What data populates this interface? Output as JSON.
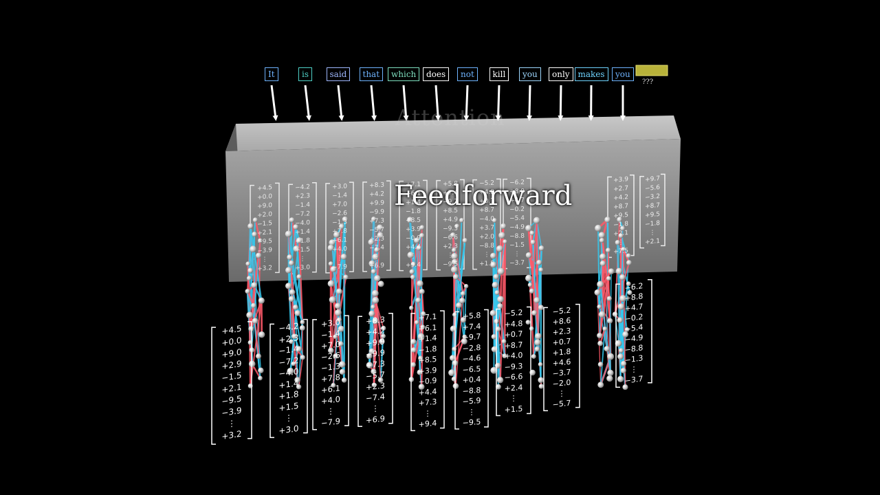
{
  "tokens": [
    {
      "text": "It",
      "color": "#6fb4ff"
    },
    {
      "text": "is",
      "color": "#4fd2c8"
    },
    {
      "text": "said",
      "color": "#9fb8ff"
    },
    {
      "text": "that",
      "color": "#6fb4ff"
    },
    {
      "text": "which",
      "color": "#7fe0c0"
    },
    {
      "text": "does",
      "color": "#ffffff"
    },
    {
      "text": "not",
      "color": "#6fb4ff"
    },
    {
      "text": "kill",
      "color": "#ffffff"
    },
    {
      "text": "you",
      "color": "#9fd8ff"
    },
    {
      "text": "only",
      "color": "#ffffff"
    },
    {
      "text": "makes",
      "color": "#6fd4ff"
    },
    {
      "text": "you",
      "color": "#6fb4ff"
    }
  ],
  "unknown_token": "???",
  "attention_label": "Attention",
  "feedforward_label": "Feedforward",
  "colors": {
    "edge_red": "#ff5a6a",
    "edge_blue": "#35c8ee",
    "neuron": "#d8d8d8",
    "wall": "#8a8a8a",
    "unknown_box": "#b8b23a"
  },
  "input_vectors": [
    [
      "+4.5",
      "+0.0",
      "+9.0",
      "+2.9",
      "−1.5",
      "+2.1",
      "−9.5",
      "−3.9",
      "⋮",
      "+3.2"
    ],
    [
      "−4.2",
      "+2.3",
      "−1.4",
      "−7.2",
      "−4.0",
      "+1.4",
      "+1.8",
      "+1.5",
      "⋮",
      "+3.0"
    ],
    [
      "+3.0",
      "−1.4",
      "+7.0",
      "−2.6",
      "−1.3",
      "+7.8",
      "+6.1",
      "+4.0",
      "⋮",
      "−7.9"
    ],
    [
      "+8.3",
      "+4.2",
      "+9.9",
      "−9.9",
      "+7.3",
      "−5.7",
      "+2.3",
      "−7.4",
      "⋮",
      "+6.9"
    ],
    [
      "+7.1",
      "+6.1",
      "+1.4",
      "−1.8",
      "+8.5",
      "+3.9",
      "−0.9",
      "+4.4",
      "+7.3",
      "⋮",
      "+9.4"
    ],
    [
      "+5.8",
      "+7.4",
      "−9.7",
      "−2.8",
      "−4.6",
      "−6.5",
      "+0.4",
      "−8.8",
      "−5.9",
      "⋮",
      "−9.5"
    ],
    [
      "−5.2",
      "+4.8",
      "+0.7",
      "+8.7",
      "+4.0",
      "−9.3",
      "−6.6",
      "+2.4",
      "⋮",
      "+1.5"
    ],
    [
      "−5.2",
      "+8.6",
      "+2.3",
      "+0.7",
      "+1.8",
      "+4.6",
      "−3.7",
      "−2.0",
      "⋮",
      "−5.7"
    ],
    [
      "−6.2",
      "+8.8",
      "+4.7",
      "−0.2",
      "−5.4",
      "−4.9",
      "−8.8",
      "−1.3",
      "⋮",
      "−3.7"
    ]
  ],
  "output_vectors": [
    [
      "+4.5",
      "+0.0",
      "+9.0",
      "+2.0",
      "−1.5",
      "+2.1",
      "−9.5",
      "−3.9",
      "⋮",
      "+3.2"
    ],
    [
      "−4.2",
      "+2.3",
      "−1.4",
      "−7.2",
      "−4.0",
      "+1.4",
      "+1.8",
      "+1.5",
      "⋮",
      "+3.0"
    ],
    [
      "+3.0",
      "−1.4",
      "+7.0",
      "−2.6",
      "−1.3",
      "+7.8",
      "+6.1",
      "+4.0",
      "⋮",
      "−7.9"
    ],
    [
      "+8.3",
      "+4.2",
      "+9.9",
      "−9.9",
      "+7.3",
      "−5.7",
      "+2.3",
      "−7.4",
      "⋮",
      "+6.9"
    ],
    [
      "+7.1",
      "+6.1",
      "+1.4",
      "−1.8",
      "+8.5",
      "+3.9",
      "−0.9",
      "+4.4",
      "⋮",
      "+9.4"
    ],
    [
      "+5.8",
      "+7.4",
      "−9.7",
      "+8.5",
      "+4.9",
      "−9.3",
      "−6.6",
      "+2.3",
      "⋮",
      "−9.5"
    ],
    [
      "−5.2",
      "+4.8",
      "+0.7",
      "+8.7",
      "−4.0",
      "+3.7",
      "+2.0",
      "−8.8",
      "⋮",
      "+1.5"
    ],
    [
      "−6.2",
      "+8.8",
      "+4.7",
      "−0.2",
      "−5.4",
      "−4.9",
      "−8.8",
      "−1.5",
      "⋮",
      "−3.7"
    ],
    [
      "+3.9",
      "+2.7",
      "+4.2",
      "+8.7",
      "+9.5",
      "−1.8",
      "+2.1",
      "⋮",
      "+7.5"
    ],
    [
      "+9.7",
      "−5.6",
      "−3.2",
      "+8.7",
      "+9.5",
      "−1.8",
      "⋮",
      "+2.1"
    ]
  ]
}
